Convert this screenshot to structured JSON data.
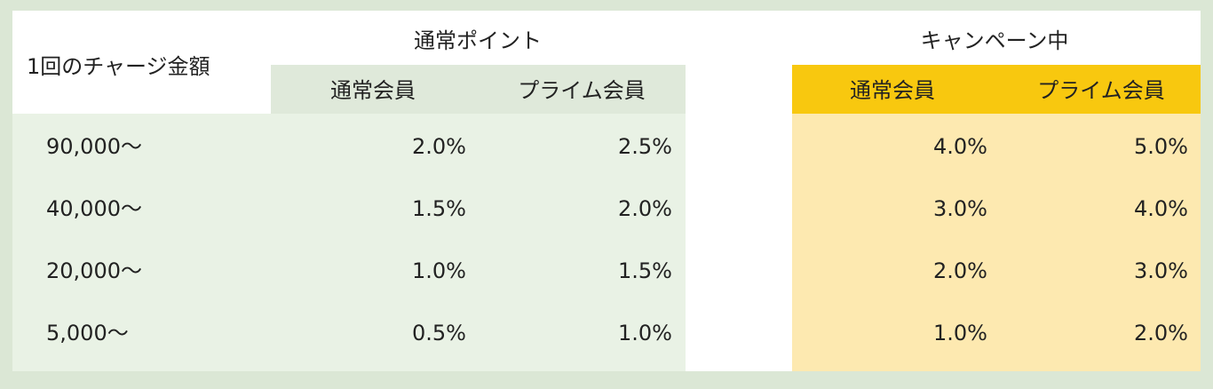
{
  "table": {
    "corner": "1回のチャージ金額",
    "groups": [
      {
        "title": "通常ポイント",
        "columns": [
          "通常会員",
          "プライム会員"
        ]
      },
      {
        "title": "キャンペーン中",
        "columns": [
          "通常会員",
          "プライム会員"
        ]
      }
    ],
    "rows": [
      [
        "90,000〜",
        "2.0%",
        "2.5%",
        "4.0%",
        "5.0%"
      ],
      [
        "40,000〜",
        "1.5%",
        "2.0%",
        "3.0%",
        "4.0%"
      ],
      [
        "20,000〜",
        "1.0%",
        "1.5%",
        "2.0%",
        "3.0%"
      ],
      [
        "5,000〜",
        "0.5%",
        "1.0%",
        "1.0%",
        "2.0%"
      ]
    ]
  }
}
